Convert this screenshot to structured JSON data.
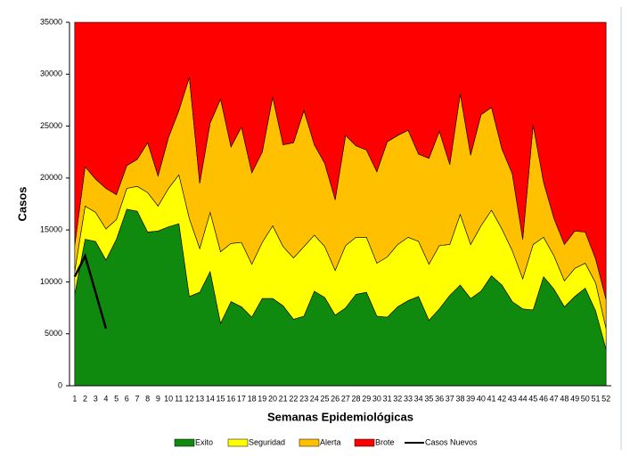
{
  "chart_data": {
    "type": "area",
    "stacked": true,
    "x_label": "Semanas Epidemiológicas",
    "y_label": "Casos",
    "categories": [
      "1",
      "2",
      "3",
      "4",
      "5",
      "6",
      "7",
      "8",
      "9",
      "10",
      "11",
      "12",
      "13",
      "14",
      "15",
      "16",
      "17",
      "18",
      "19",
      "20",
      "21",
      "22",
      "23",
      "24",
      "25",
      "26",
      "27",
      "28",
      "29",
      "30",
      "31",
      "32",
      "33",
      "34",
      "35",
      "36",
      "37",
      "38",
      "39",
      "40",
      "41",
      "42",
      "43",
      "44",
      "45",
      "46",
      "47",
      "48",
      "49",
      "50",
      "51",
      "52"
    ],
    "ylim": [
      0,
      35000
    ],
    "yticks": [
      0,
      5000,
      10000,
      15000,
      20000,
      25000,
      30000,
      35000
    ],
    "legend": "bottom",
    "series": [
      {
        "name": "Exito",
        "color": "#0f8a0f",
        "values": [
          8800,
          14100,
          13900,
          12100,
          14100,
          17000,
          16800,
          14800,
          14900,
          15300,
          15600,
          8600,
          9000,
          11000,
          6000,
          8100,
          7600,
          6600,
          8400,
          8400,
          7700,
          6400,
          6700,
          9100,
          8500,
          6800,
          7500,
          8800,
          9000,
          6700,
          6600,
          7600,
          8200,
          8600,
          6300,
          7400,
          8700,
          9700,
          8400,
          9100,
          10600,
          9700,
          8100,
          7400,
          7300,
          10500,
          9300,
          7600,
          8600,
          9400,
          7200,
          3500
        ]
      },
      {
        "name": "Seguridad",
        "color": "#ffff00",
        "values": [
          2200,
          3200,
          2800,
          3000,
          1900,
          2000,
          2400,
          3800,
          2400,
          3700,
          4700,
          7500,
          4200,
          5700,
          6900,
          5600,
          6200,
          5100,
          5400,
          7000,
          5700,
          5900,
          6700,
          5400,
          4900,
          4300,
          6000,
          5500,
          5300,
          5100,
          5800,
          6000,
          6100,
          5300,
          5400,
          6100,
          4900,
          6800,
          5200,
          6300,
          6300,
          5400,
          4900,
          2900,
          6300,
          3800,
          3200,
          2500,
          2700,
          2400,
          2700,
          2000
        ]
      },
      {
        "name": "Alerta",
        "color": "#ffc000",
        "values": [
          2500,
          3800,
          3200,
          3900,
          2400,
          2200,
          2600,
          4800,
          2900,
          4900,
          6200,
          13600,
          6300,
          8600,
          14700,
          9300,
          11100,
          8800,
          8700,
          12400,
          9800,
          11100,
          13100,
          8700,
          8000,
          6800,
          10600,
          8800,
          8400,
          8800,
          11100,
          10500,
          10300,
          8400,
          10200,
          11000,
          7700,
          11600,
          8600,
          10700,
          9900,
          7700,
          7400,
          3800,
          11500,
          5300,
          3600,
          3500,
          3600,
          3000,
          2300,
          2800
        ]
      },
      {
        "name": "Brote",
        "color": "#ff0000",
        "values": [
          21500,
          13900,
          15100,
          16000,
          16600,
          13800,
          13200,
          11600,
          14800,
          11100,
          8500,
          5300,
          15500,
          9700,
          7400,
          12000,
          10100,
          14500,
          12500,
          7200,
          11800,
          11600,
          8500,
          11800,
          13600,
          17100,
          10900,
          11900,
          12300,
          14400,
          11500,
          10900,
          10400,
          12700,
          13100,
          10500,
          13700,
          6900,
          12800,
          8900,
          8200,
          12200,
          14600,
          20900,
          9900,
          15400,
          18900,
          21400,
          20100,
          20200,
          22800,
          26700
        ]
      },
      {
        "name": "Casos Nuevos",
        "type": "line",
        "color": "#000000",
        "values": [
          10500,
          12500,
          9000,
          5500,
          null,
          null,
          null,
          null,
          null,
          null,
          null,
          null,
          null,
          null,
          null,
          null,
          null,
          null,
          null,
          null,
          null,
          null,
          null,
          null,
          null,
          null,
          null,
          null,
          null,
          null,
          null,
          null,
          null,
          null,
          null,
          null,
          null,
          null,
          null,
          null,
          null,
          null,
          null,
          null,
          null,
          null,
          null,
          null,
          null,
          null,
          null,
          null
        ]
      }
    ]
  }
}
